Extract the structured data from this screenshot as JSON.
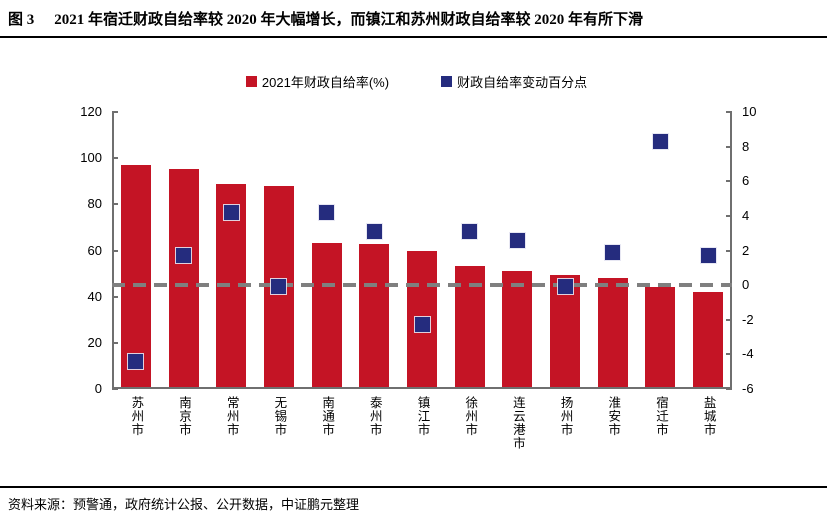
{
  "header": {
    "figure_label": "图 3",
    "title": "2021 年宿迁财政自给率较 2020 年大幅增长，而镇江和苏州财政自给率较 2020 年有所下滑"
  },
  "legend": {
    "items": [
      {
        "label": "2021年财政自给率(%)",
        "color": "#C41425",
        "marker": "square"
      },
      {
        "label": "财政自给率变动百分点",
        "color": "#252C7E",
        "marker": "square"
      }
    ]
  },
  "footer": {
    "source": "资料来源：预警通，政府统计公报、公开数据，中证鹏元整理"
  },
  "chart_data": {
    "type": "bar",
    "subtype": "bar-with-scatter-squares-dual-axis",
    "categories": [
      "苏州市",
      "南京市",
      "常州市",
      "无锡市",
      "南通市",
      "泰州市",
      "镇江市",
      "徐州市",
      "连云港市",
      "扬州市",
      "淮安市",
      "宿迁市",
      "盐城市"
    ],
    "series": [
      {
        "name": "2021年财政自给率(%)",
        "type": "bar",
        "axis": "left",
        "color": "#C41425",
        "values": [
          97.1,
          95.1,
          89.0,
          88.0,
          63.2,
          62.9,
          60.0,
          53.3,
          51.0,
          49.5,
          48.0,
          44.0,
          42.2
        ]
      },
      {
        "name": "财政自给率变动百分点",
        "type": "scatter-square",
        "axis": "right",
        "color": "#252C7E",
        "values": [
          -4.4,
          1.7,
          4.2,
          -0.1,
          4.2,
          3.1,
          -2.3,
          3.1,
          2.6,
          -0.1,
          1.9,
          8.3,
          1.7
        ]
      }
    ],
    "left_axis": {
      "min": 0,
      "max": 120,
      "step": 20,
      "tick_labels": [
        "0",
        "20",
        "40",
        "60",
        "80",
        "100",
        "120"
      ]
    },
    "right_axis": {
      "min": -6,
      "max": 10,
      "step": 2,
      "tick_labels": [
        "-6",
        "-4",
        "-2",
        "0",
        "2",
        "4",
        "6",
        "8",
        "10"
      ]
    },
    "zero_line": {
      "axis": "right",
      "value": 0,
      "style": "dashed",
      "color": "#7F7F7F"
    },
    "grid": "off",
    "legend_position": "top-center",
    "title": "",
    "xlabel": "",
    "ylabel": ""
  }
}
